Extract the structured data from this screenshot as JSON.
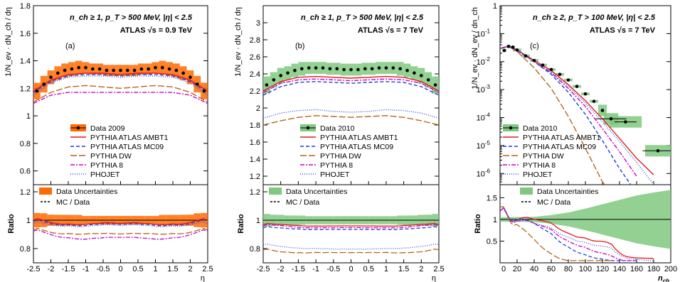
{
  "chart_data": [
    {
      "type": "line",
      "panel_label": "(a)",
      "header_line1": "n_ch ≥ 1, p_T > 500 MeV, |η| < 2.5",
      "header_line2": "ATLAS √s = 0.9 TeV",
      "xlabel": "η",
      "ylabel": "1/N_ev · dN_ch / dη",
      "ratio_ylabel": "Ratio",
      "xlim": [
        -2.5,
        2.5
      ],
      "ylim": [
        0.5,
        1.8
      ],
      "ratio_ylim": [
        0.7,
        1.25
      ],
      "x_ticks": [
        "-2.5",
        "-2",
        "-1.5",
        "-1",
        "-0.5",
        "0",
        "0.5",
        "1",
        "1.5",
        "2",
        "2.5"
      ],
      "y_ticks": [
        "0.6",
        "0.8",
        "1",
        "1.2",
        "1.4",
        "1.6",
        "1.8"
      ],
      "ratio_y_ticks": [
        "0.8",
        "1",
        "1.2"
      ],
      "data_color": "#ff6a00",
      "series": [
        {
          "name": "Data 2009",
          "style": "data",
          "x": [
            -2.4,
            -2.2,
            -2.0,
            -1.8,
            -1.6,
            -1.4,
            -1.2,
            -1.0,
            -0.8,
            -0.6,
            -0.4,
            -0.2,
            0.0,
            0.2,
            0.4,
            0.6,
            0.8,
            1.0,
            1.2,
            1.4,
            1.6,
            1.8,
            2.0,
            2.2,
            2.4
          ],
          "y": [
            1.18,
            1.23,
            1.28,
            1.31,
            1.33,
            1.34,
            1.35,
            1.35,
            1.34,
            1.34,
            1.33,
            1.33,
            1.33,
            1.33,
            1.33,
            1.34,
            1.34,
            1.35,
            1.35,
            1.34,
            1.33,
            1.31,
            1.28,
            1.23,
            1.18
          ],
          "band": [
            0.06,
            0.06,
            0.05,
            0.05,
            0.05,
            0.05,
            0.05,
            0.04,
            0.04,
            0.04,
            0.04,
            0.04,
            0.04,
            0.04,
            0.04,
            0.04,
            0.04,
            0.04,
            0.05,
            0.05,
            0.05,
            0.05,
            0.05,
            0.06,
            0.06
          ]
        },
        {
          "name": "PYTHIA ATLAS AMBT1",
          "color": "#e41a1c",
          "dash": "",
          "x": [
            -2.5,
            -2.0,
            -1.5,
            -1.0,
            -0.5,
            0.0,
            0.5,
            1.0,
            1.5,
            2.0,
            2.5
          ],
          "y": [
            1.18,
            1.26,
            1.3,
            1.31,
            1.31,
            1.3,
            1.31,
            1.31,
            1.3,
            1.26,
            1.18
          ]
        },
        {
          "name": "PYTHIA ATLAS MC09",
          "color": "#1f3fd1",
          "dash": "5,3",
          "x": [
            -2.5,
            -2.0,
            -1.5,
            -1.0,
            -0.5,
            0.0,
            0.5,
            1.0,
            1.5,
            2.0,
            2.5
          ],
          "y": [
            1.17,
            1.25,
            1.29,
            1.3,
            1.3,
            1.29,
            1.3,
            1.3,
            1.29,
            1.25,
            1.17
          ]
        },
        {
          "name": "PYTHIA DW",
          "color": "#b5651d",
          "dash": "9,3",
          "x": [
            -2.5,
            -2.0,
            -1.5,
            -1.0,
            -0.5,
            0.0,
            0.5,
            1.0,
            1.5,
            2.0,
            2.5
          ],
          "y": [
            1.1,
            1.17,
            1.21,
            1.22,
            1.21,
            1.2,
            1.21,
            1.22,
            1.21,
            1.17,
            1.1
          ]
        },
        {
          "name": "PYTHIA 8",
          "color": "#cc00cc",
          "dash": "6,2,2,2",
          "x": [
            -2.5,
            -2.0,
            -1.5,
            -1.0,
            -0.5,
            0.0,
            0.5,
            1.0,
            1.5,
            2.0,
            2.5
          ],
          "y": [
            1.09,
            1.15,
            1.17,
            1.17,
            1.17,
            1.17,
            1.17,
            1.17,
            1.17,
            1.15,
            1.09
          ]
        },
        {
          "name": "PHOJET",
          "color": "#3050e0",
          "dash": "1,2",
          "x": [
            -2.5,
            -2.0,
            -1.5,
            -1.0,
            -0.5,
            0.0,
            0.5,
            1.0,
            1.5,
            2.0,
            2.5
          ],
          "y": [
            1.15,
            1.24,
            1.28,
            1.29,
            1.29,
            1.28,
            1.29,
            1.29,
            1.28,
            1.24,
            1.15
          ]
        }
      ],
      "ratio_legend": [
        "Data Uncertainties",
        "MC / Data"
      ]
    },
    {
      "type": "line",
      "panel_label": "(b)",
      "header_line1": "n_ch ≥ 1, p_T > 500 MeV, |η| < 2.5",
      "header_line2": "ATLAS √s = 7 TeV",
      "xlabel": "η",
      "ylabel": "1/N_ev · dN_ch / dη",
      "ratio_ylabel": "Ratio",
      "xlim": [
        -2.5,
        2.5
      ],
      "ylim": [
        1.1,
        3.2
      ],
      "ratio_ylim": [
        0.7,
        1.25
      ],
      "x_ticks": [
        "-2.5",
        "-2",
        "-1.5",
        "-1",
        "-0.5",
        "0",
        "0.5",
        "1",
        "1.5",
        "2",
        "2.5"
      ],
      "y_ticks": [
        "1.2",
        "1.4",
        "1.6",
        "1.8",
        "2",
        "2.2",
        "2.4",
        "2.6",
        "2.8",
        "3"
      ],
      "ratio_y_ticks": [
        "0.8",
        "1",
        "1.2"
      ],
      "data_color": "#7fc97f",
      "series": [
        {
          "name": "Data 2010",
          "style": "data",
          "x": [
            -2.4,
            -2.2,
            -2.0,
            -1.8,
            -1.6,
            -1.4,
            -1.2,
            -1.0,
            -0.8,
            -0.6,
            -0.4,
            -0.2,
            0.0,
            0.2,
            0.4,
            0.6,
            0.8,
            1.0,
            1.2,
            1.4,
            1.6,
            1.8,
            2.0,
            2.2,
            2.4
          ],
          "y": [
            2.27,
            2.33,
            2.38,
            2.41,
            2.44,
            2.46,
            2.47,
            2.47,
            2.47,
            2.46,
            2.46,
            2.45,
            2.45,
            2.45,
            2.46,
            2.46,
            2.47,
            2.47,
            2.47,
            2.46,
            2.44,
            2.41,
            2.38,
            2.33,
            2.27
          ],
          "band": [
            0.1,
            0.09,
            0.09,
            0.08,
            0.08,
            0.08,
            0.07,
            0.07,
            0.07,
            0.07,
            0.07,
            0.07,
            0.07,
            0.07,
            0.07,
            0.07,
            0.07,
            0.07,
            0.07,
            0.08,
            0.08,
            0.08,
            0.09,
            0.09,
            0.1
          ]
        },
        {
          "name": "PYTHIA ATLAS AMBT1",
          "color": "#e41a1c",
          "dash": "",
          "x": [
            -2.5,
            -2.0,
            -1.5,
            -1.0,
            -0.5,
            0.0,
            0.5,
            1.0,
            1.5,
            2.0,
            2.5
          ],
          "y": [
            2.2,
            2.31,
            2.36,
            2.37,
            2.36,
            2.35,
            2.36,
            2.37,
            2.36,
            2.31,
            2.2
          ]
        },
        {
          "name": "PYTHIA ATLAS MC09",
          "color": "#1f3fd1",
          "dash": "5,3",
          "x": [
            -2.5,
            -2.0,
            -1.5,
            -1.0,
            -0.5,
            0.0,
            0.5,
            1.0,
            1.5,
            2.0,
            2.5
          ],
          "y": [
            2.15,
            2.25,
            2.3,
            2.31,
            2.3,
            2.29,
            2.3,
            2.31,
            2.3,
            2.25,
            2.15
          ]
        },
        {
          "name": "PYTHIA DW",
          "color": "#b5651d",
          "dash": "9,3",
          "x": [
            -2.5,
            -2.0,
            -1.5,
            -1.0,
            -0.5,
            0.0,
            0.5,
            1.0,
            1.5,
            2.0,
            2.5
          ],
          "y": [
            1.8,
            1.85,
            1.89,
            1.91,
            1.9,
            1.89,
            1.9,
            1.91,
            1.89,
            1.85,
            1.8
          ]
        },
        {
          "name": "PYTHIA 8",
          "color": "#cc00cc",
          "dash": "6,2,2,2",
          "x": [
            -2.5,
            -2.0,
            -1.5,
            -1.0,
            -0.5,
            0.0,
            0.5,
            1.0,
            1.5,
            2.0,
            2.5
          ],
          "y": [
            2.18,
            2.29,
            2.33,
            2.34,
            2.33,
            2.32,
            2.33,
            2.34,
            2.33,
            2.29,
            2.18
          ]
        },
        {
          "name": "PHOJET",
          "color": "#3050e0",
          "dash": "1,2",
          "x": [
            -2.5,
            -2.0,
            -1.5,
            -1.0,
            -0.5,
            0.0,
            0.5,
            1.0,
            1.5,
            2.0,
            2.5
          ],
          "y": [
            1.88,
            1.94,
            1.97,
            1.98,
            1.96,
            1.95,
            1.96,
            1.98,
            1.97,
            1.94,
            1.88
          ]
        }
      ],
      "ratio_legend": [
        "Data Uncertainties",
        "MC / Data"
      ]
    },
    {
      "type": "line",
      "panel_label": "(c)",
      "header_line1": "n_ch ≥ 2, p_T > 100 MeV, |η| < 2.5",
      "header_line2": "ATLAS √s = 7 TeV",
      "xlabel": "n_ch",
      "ylabel": "1/N_ev · dN_ev / dn_ch",
      "ratio_ylabel": "Ratio",
      "xlim": [
        0,
        200
      ],
      "ylim_log10": [
        -6.4,
        0
      ],
      "y_scale": "log",
      "ratio_ylim": [
        0,
        1.8
      ],
      "x_ticks": [
        "20",
        "40",
        "60",
        "80",
        "100",
        "120",
        "140",
        "160",
        "180",
        "200"
      ],
      "y_ticks": [
        "10^-6",
        "10^-5",
        "10^-4",
        "10^-3",
        "10^-2",
        "10^-1",
        "1"
      ],
      "ratio_y_ticks": [
        "0.5",
        "1",
        "1.5"
      ],
      "data_color": "#7fc97f",
      "series": [
        {
          "name": "Data 2010",
          "style": "data",
          "x": [
            5,
            10,
            15,
            20,
            30,
            40,
            50,
            60,
            70,
            80,
            90,
            100,
            110,
            120,
            130,
            147,
            185
          ],
          "y": [
            0.025,
            0.035,
            0.033,
            0.026,
            0.016,
            0.011,
            0.0075,
            0.0052,
            0.0035,
            0.0022,
            0.0013,
            0.0007,
            0.00038,
            0.00018,
            9e-05,
            7e-05,
            6.5e-06
          ]
        },
        {
          "name": "PYTHIA ATLAS AMBT1",
          "color": "#e41a1c",
          "dash": "",
          "x": [
            2,
            10,
            20,
            40,
            60,
            80,
            100,
            120,
            140,
            160,
            180
          ],
          "y": [
            0.03,
            0.036,
            0.026,
            0.011,
            0.0048,
            0.0015,
            0.0004,
            9e-05,
            1.8e-05,
            3.5e-06,
            9e-07
          ]
        },
        {
          "name": "PYTHIA ATLAS MC09",
          "color": "#1f3fd1",
          "dash": "5,3",
          "x": [
            2,
            10,
            20,
            40,
            60,
            80,
            100,
            120,
            140,
            160
          ],
          "y": [
            0.03,
            0.036,
            0.026,
            0.01,
            0.0035,
            0.0008,
            0.00013,
            1.5e-05,
            1.5e-06,
            2e-07
          ]
        },
        {
          "name": "PYTHIA DW",
          "color": "#b5651d",
          "dash": "9,3",
          "x": [
            2,
            10,
            20,
            40,
            60,
            80,
            100,
            120,
            130
          ],
          "y": [
            0.032,
            0.035,
            0.023,
            0.006,
            0.0011,
            0.00011,
            8e-06,
            5e-07,
            2e-07
          ]
        },
        {
          "name": "PYTHIA 8",
          "color": "#cc00cc",
          "dash": "6,2,2,2",
          "x": [
            2,
            10,
            20,
            40,
            60,
            80,
            100,
            120,
            140,
            160
          ],
          "y": [
            0.03,
            0.036,
            0.025,
            0.01,
            0.004,
            0.0011,
            0.00025,
            4e-05,
            6e-06,
            8e-07
          ]
        },
        {
          "name": "PHOJET",
          "color": "#3050e0",
          "dash": "1,2",
          "x": [
            2,
            10,
            20,
            40,
            60,
            80,
            100,
            120,
            140,
            160,
            180
          ],
          "y": [
            0.03,
            0.036,
            0.026,
            0.01,
            0.0042,
            0.0013,
            0.00033,
            7e-05,
            1.4e-05,
            2.5e-06,
            4e-07
          ]
        }
      ],
      "ratio_legend": [
        "Data Uncertainties",
        "MC / Data"
      ]
    }
  ]
}
